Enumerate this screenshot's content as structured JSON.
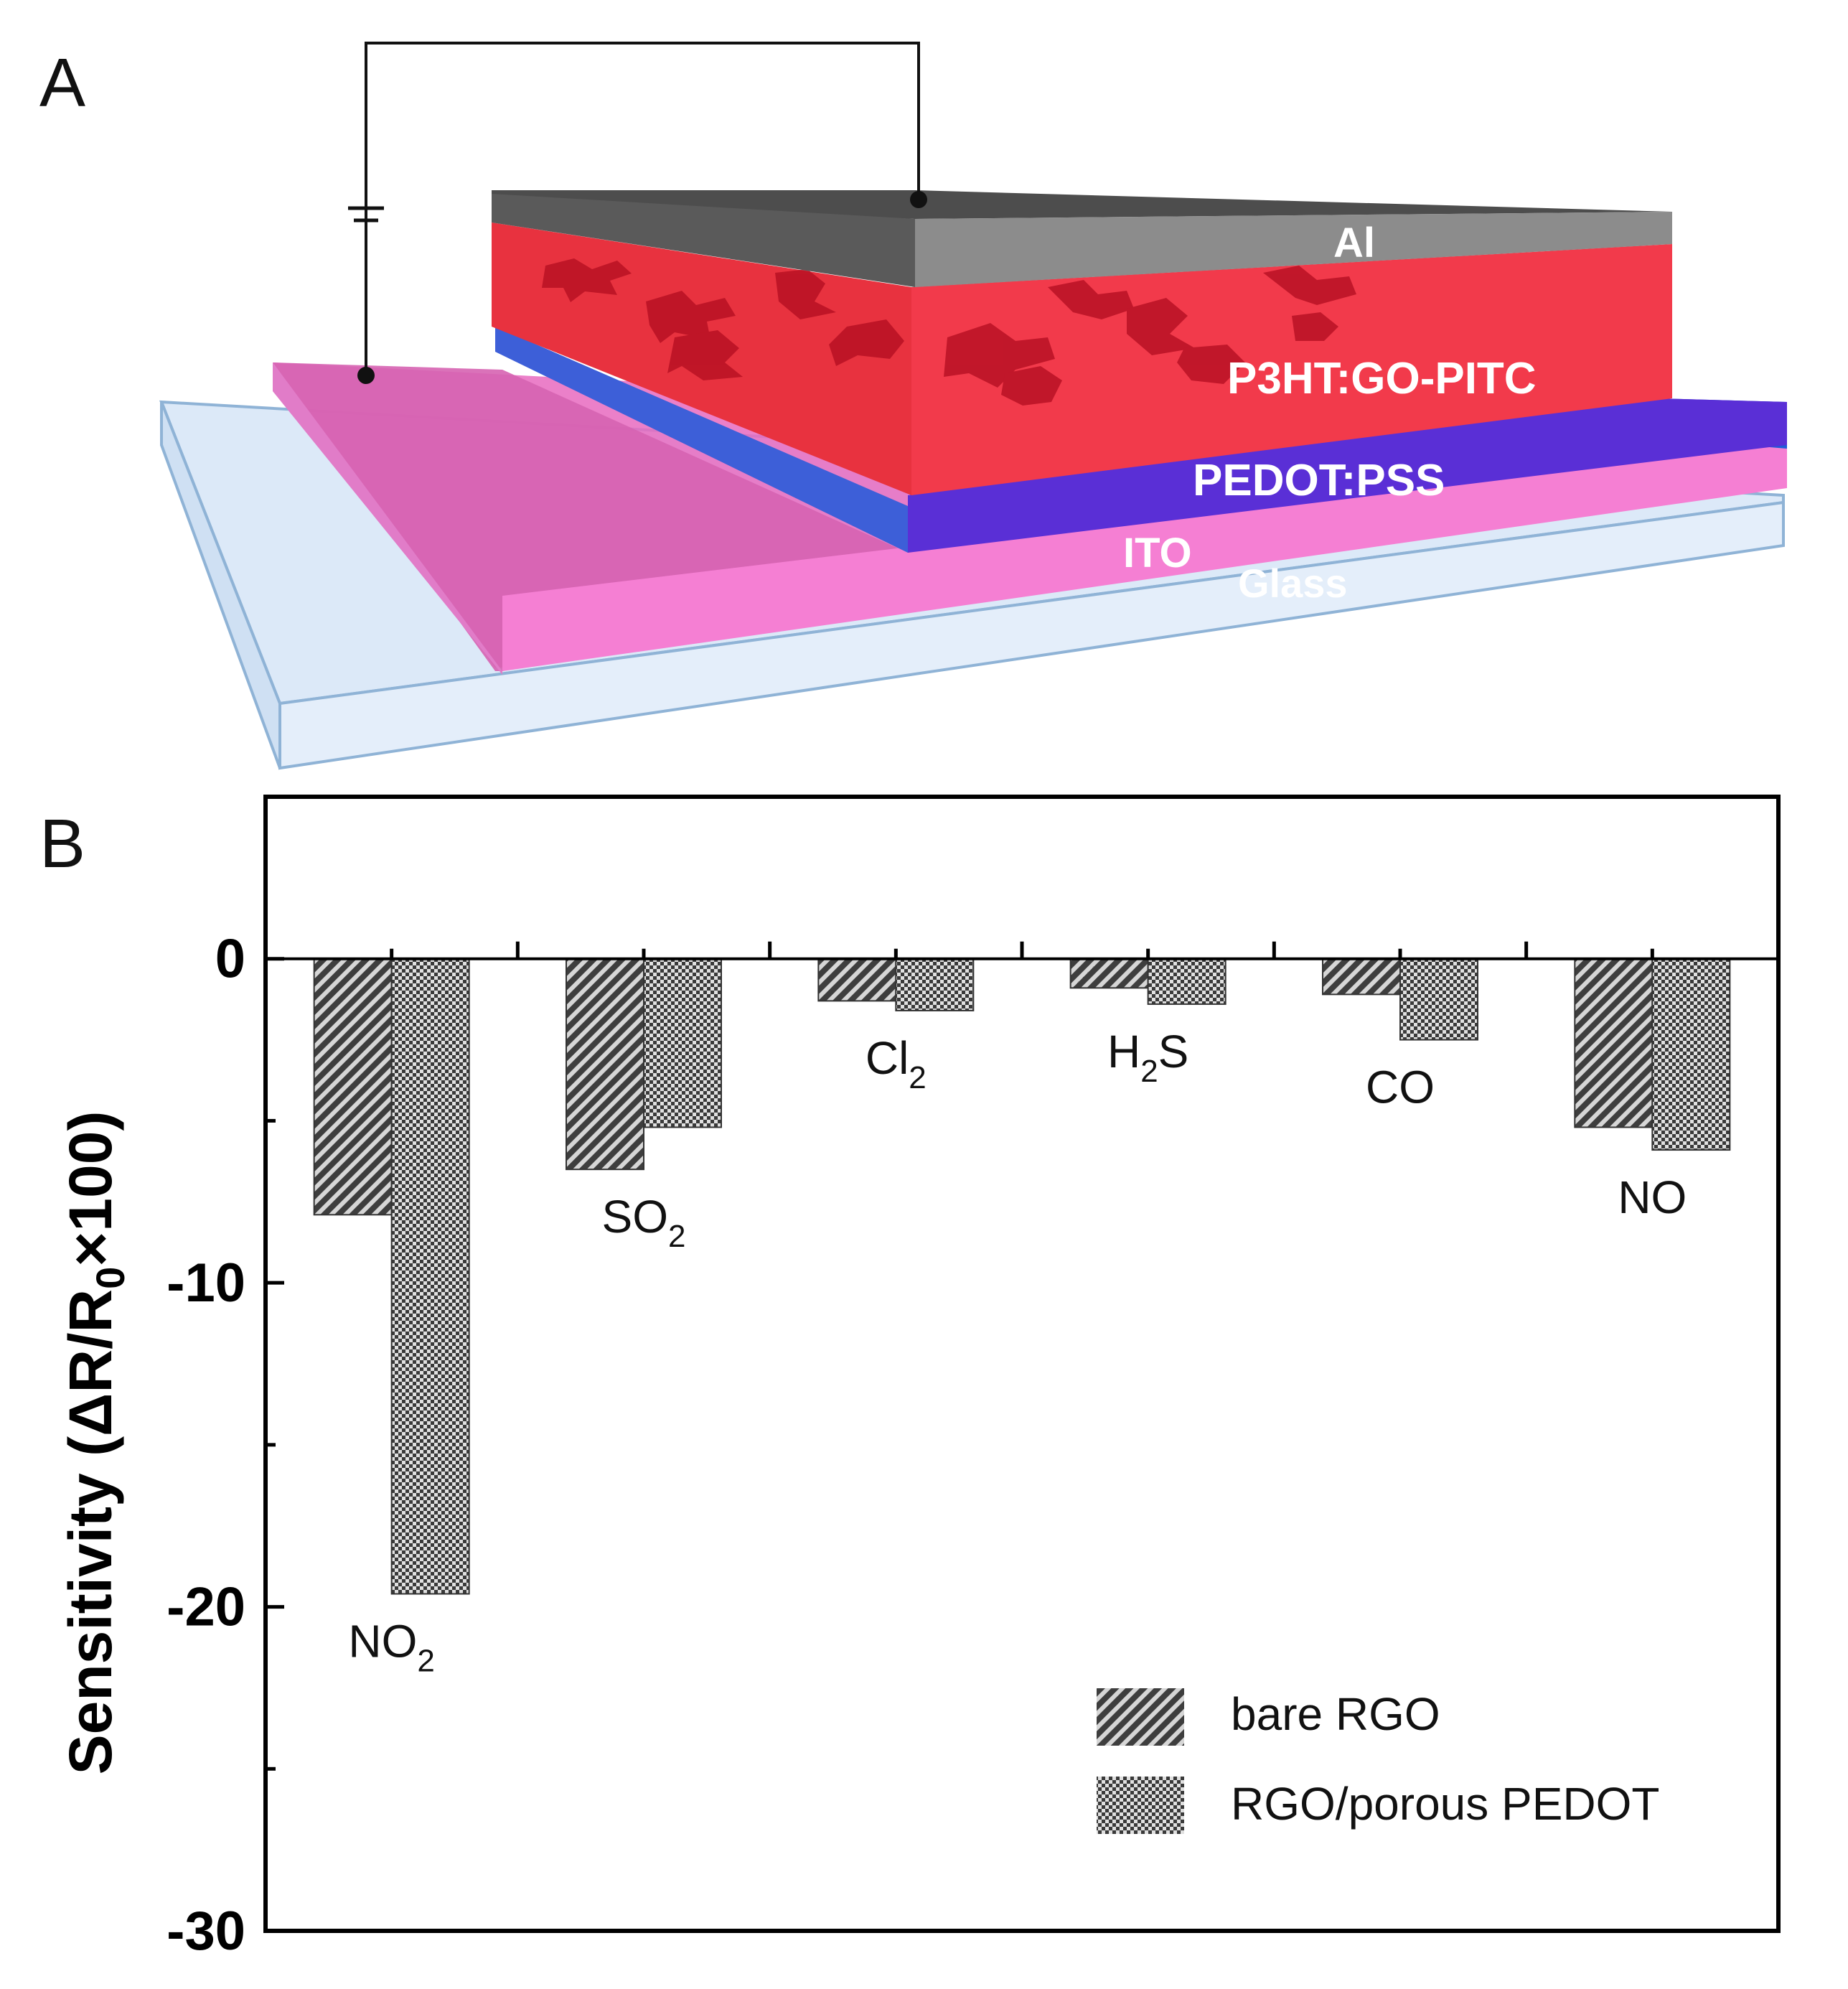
{
  "panel_a": {
    "label": "A",
    "layers": {
      "al": "Al",
      "active": "P3HT:GO-PITC",
      "htl": "PEDOT:PSS",
      "ito": "ITO",
      "glass": "Glass"
    },
    "colors": {
      "al_top": "#4d4d4d",
      "al_front": "#8c8c8c",
      "active": "#f23a4b",
      "active_dark": "#b80f24",
      "htl": "#5a2fd6",
      "htl_side": "#1f5bd8",
      "ito": "#f57fd3",
      "ito_top": "#e956b7",
      "glass": "#d9e8f8",
      "glass_edge": "#8fb3d6"
    }
  },
  "panel_b": {
    "label": "B",
    "legend_position": "bottom-right"
  },
  "chart_data": {
    "type": "bar",
    "categories_display": [
      {
        "base": "NO",
        "sub": "2"
      },
      {
        "base": "SO",
        "sub": "2"
      },
      {
        "base": "Cl",
        "sub": "2"
      },
      {
        "base": "H",
        "sub": "2",
        "tail": "S"
      },
      {
        "base": "CO",
        "sub": ""
      },
      {
        "base": "NO",
        "sub": ""
      }
    ],
    "series": [
      {
        "name": "bare RGO",
        "pattern": "hatch",
        "values": [
          -7.9,
          -6.5,
          -1.3,
          -0.9,
          -1.1,
          -5.2
        ]
      },
      {
        "name": "RGO/porous PEDOT",
        "pattern": "crosshatch",
        "values": [
          -19.6,
          -5.2,
          -1.6,
          -1.4,
          -2.5,
          -5.9
        ]
      }
    ],
    "y_ticks": [
      0,
      -10,
      -20,
      -30
    ],
    "ylim": [
      -30,
      5
    ],
    "ylabel": {
      "pre": "Sensitivity (ΔR/R",
      "sub": "0",
      "post": "×100)"
    },
    "xlabel": "",
    "colors": {
      "bar": "#4a4a4a",
      "bar_bg": "#d8d8d8",
      "axis": "#000000"
    }
  }
}
